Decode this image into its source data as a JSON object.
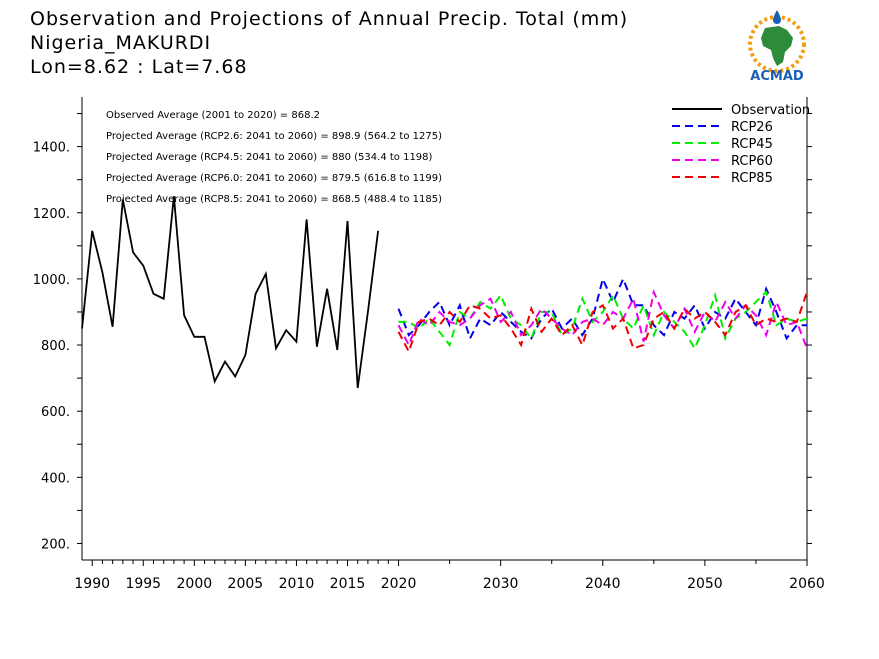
{
  "header": {
    "title_line1": "Observation and Projections of Annual Precip. Total (mm)",
    "title_line2": "Nigeria_MAKURDI",
    "title_line3": "Lon=8.62 : Lat=7.68"
  },
  "logo": {
    "text": "ACMAD"
  },
  "colors": {
    "observation": "#000000",
    "rcp26": "#0000ee",
    "rcp45": "#00ee00",
    "rcp60": "#ee00ee",
    "rcp85": "#ee0000",
    "logo_blue": "#1a5fb4",
    "logo_green": "#2e8b3a",
    "logo_orange": "#f39c12"
  },
  "chart_data": {
    "type": "line",
    "title": "Observation and Projections of Annual Precip. Total (mm)",
    "xlim": [
      1989,
      2060
    ],
    "ylim": [
      150,
      1550
    ],
    "x_tick_labels": [
      "1990",
      "1995",
      "2000",
      "2005",
      "2010",
      "2015",
      "2020",
      "2030",
      "2040",
      "2050",
      "2060"
    ],
    "x_tick_values": [
      1990,
      1995,
      2000,
      2005,
      2010,
      2015,
      2020,
      2030,
      2040,
      2050,
      2060
    ],
    "y_tick_labels": [
      "200.",
      "400.",
      "600.",
      "800.",
      "1000.",
      "1200.",
      "1400."
    ],
    "y_tick_values": [
      200,
      400,
      600,
      800,
      1000,
      1200,
      1400
    ],
    "grid": false,
    "legend_position": "top-right",
    "annotations": [
      "Observed Average (2001 to 2020) = 868.2",
      "Projected Average (RCP2.6: 2041 to 2060) = 898.9 (564.2 to 1275)",
      "Projected Average (RCP4.5: 2041 to 2060) = 880 (534.4 to 1198)",
      "Projected Average (RCP6.0: 2041 to 2060) = 879.5 (616.8 to 1199)",
      "Projected Average (RCP8.5: 2041 to 2060) = 868.5 (488.4 to 1185)"
    ],
    "series": [
      {
        "name": "Observation",
        "style": "solid",
        "x": [
          1989,
          1990,
          1991,
          1992,
          1993,
          1994,
          1995,
          1996,
          1997,
          1998,
          1999,
          2000,
          2001,
          2002,
          2003,
          2004,
          2005,
          2006,
          2007,
          2008,
          2009,
          2010,
          2011,
          2012,
          2013,
          2014,
          2015,
          2016,
          2017,
          2018,
          2019,
          2020
        ],
        "y": [
          850,
          1145,
          1020,
          855,
          1240,
          1080,
          1040,
          955,
          940,
          1250,
          890,
          825,
          825,
          690,
          750,
          705,
          770,
          955,
          1015,
          790,
          845,
          810,
          1180,
          795,
          970,
          785,
          1175,
          670,
          900,
          1145,
          null,
          null
        ]
      },
      {
        "name": "RCP26",
        "style": "dashed",
        "x": [
          2020,
          2021,
          2022,
          2023,
          2024,
          2025,
          2026,
          2027,
          2028,
          2029,
          2030,
          2031,
          2032,
          2033,
          2034,
          2035,
          2036,
          2037,
          2038,
          2039,
          2040,
          2041,
          2042,
          2043,
          2044,
          2045,
          2046,
          2047,
          2048,
          2049,
          2050,
          2051,
          2052,
          2053,
          2054,
          2055,
          2056,
          2057,
          2058,
          2059,
          2060
        ],
        "y": [
          910,
          830,
          860,
          900,
          930,
          860,
          920,
          820,
          880,
          860,
          900,
          870,
          840,
          820,
          880,
          910,
          850,
          880,
          830,
          880,
          1000,
          930,
          1000,
          920,
          920,
          860,
          830,
          900,
          880,
          920,
          850,
          900,
          880,
          940,
          900,
          860,
          970,
          900,
          820,
          860,
          860
        ]
      },
      {
        "name": "RCP45",
        "style": "dashed",
        "x": [
          2020,
          2021,
          2022,
          2023,
          2024,
          2025,
          2026,
          2027,
          2028,
          2029,
          2030,
          2031,
          2032,
          2033,
          2034,
          2035,
          2036,
          2037,
          2038,
          2039,
          2040,
          2041,
          2042,
          2043,
          2044,
          2045,
          2046,
          2047,
          2048,
          2049,
          2050,
          2051,
          2052,
          2053,
          2054,
          2055,
          2056,
          2057,
          2058,
          2059,
          2060
        ],
        "y": [
          870,
          870,
          850,
          880,
          840,
          800,
          900,
          880,
          930,
          910,
          950,
          880,
          860,
          820,
          900,
          900,
          830,
          850,
          940,
          870,
          900,
          950,
          880,
          850,
          920,
          830,
          900,
          870,
          840,
          790,
          860,
          950,
          820,
          880,
          900,
          930,
          960,
          860,
          880,
          870,
          880
        ]
      },
      {
        "name": "RCP60",
        "style": "dashed",
        "x": [
          2020,
          2021,
          2022,
          2023,
          2024,
          2025,
          2026,
          2027,
          2028,
          2029,
          2030,
          2031,
          2032,
          2033,
          2034,
          2035,
          2036,
          2037,
          2038,
          2039,
          2040,
          2041,
          2042,
          2043,
          2044,
          2045,
          2046,
          2047,
          2048,
          2049,
          2050,
          2051,
          2052,
          2053,
          2054,
          2055,
          2056,
          2057,
          2058,
          2059,
          2060
        ],
        "y": [
          860,
          800,
          880,
          860,
          900,
          870,
          860,
          880,
          920,
          940,
          870,
          900,
          830,
          860,
          910,
          880,
          850,
          830,
          870,
          880,
          860,
          900,
          880,
          940,
          810,
          960,
          890,
          850,
          910,
          840,
          900,
          870,
          930,
          880,
          920,
          890,
          830,
          930,
          860,
          870,
          790
        ]
      },
      {
        "name": "RCP85",
        "style": "dashed",
        "x": [
          2020,
          2021,
          2022,
          2023,
          2024,
          2025,
          2026,
          2027,
          2028,
          2029,
          2030,
          2031,
          2032,
          2033,
          2034,
          2035,
          2036,
          2037,
          2038,
          2039,
          2040,
          2041,
          2042,
          2043,
          2044,
          2045,
          2046,
          2047,
          2048,
          2049,
          2050,
          2051,
          2052,
          2053,
          2054,
          2055,
          2056,
          2057,
          2058,
          2059,
          2060
        ],
        "y": [
          840,
          780,
          870,
          880,
          860,
          900,
          870,
          920,
          910,
          880,
          890,
          850,
          800,
          910,
          840,
          880,
          830,
          860,
          800,
          900,
          920,
          850,
          880,
          790,
          800,
          880,
          900,
          850,
          910,
          880,
          900,
          870,
          830,
          900,
          920,
          860,
          880,
          870,
          880,
          870,
          960
        ]
      }
    ]
  }
}
